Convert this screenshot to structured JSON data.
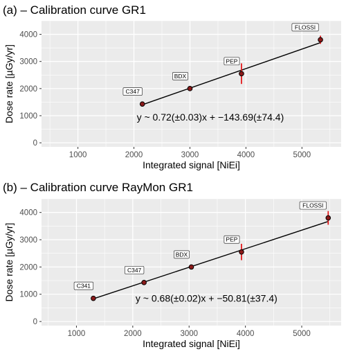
{
  "chart_data": [
    {
      "type": "scatter",
      "title": "(a) – Calibration curve GR1",
      "xlabel": "Integrated signal [NiEi]",
      "ylabel": "Dose rate [µGy/yr]",
      "xlim": [
        350,
        5700
      ],
      "ylim": [
        -150,
        4500
      ],
      "xticks": [
        1000,
        2000,
        3000,
        4000,
        5000
      ],
      "yticks": [
        0,
        1000,
        2000,
        3000,
        4000
      ],
      "xtick_labels": [
        "1000",
        "2000",
        "3000",
        "4000",
        "5000"
      ],
      "ytick_labels": [
        "0",
        "1000",
        "2000",
        "3000",
        "4000"
      ],
      "grid": true,
      "points": [
        {
          "label": "C347",
          "x": 2150,
          "y": 1430,
          "err": 0
        },
        {
          "label": "BDX",
          "x": 3000,
          "y": 2000,
          "err": 0
        },
        {
          "label": "PEP",
          "x": 3920,
          "y": 2550,
          "err": 380
        },
        {
          "label": "FLOSSI",
          "x": 5330,
          "y": 3800,
          "err": 150
        }
      ],
      "fit": {
        "slope": 0.72,
        "intercept": -143.69,
        "x_range": [
          2150,
          5330
        ]
      },
      "equation": "y ~ 0.72(±0.03)x + −143.69(±74.4)",
      "equation_pos": {
        "x": 2050,
        "y": 950
      },
      "colors": {
        "point_fill": "#8b1a1a",
        "error_bar": "#e41a1c",
        "line": "#000000",
        "panel": "#ebebeb",
        "grid": "#ffffff"
      }
    },
    {
      "type": "scatter",
      "title": "(b) – Calibration curve RayMon GR1",
      "xlabel": "Integrated signal [NiEi]",
      "ylabel": "Dose rate [µGy/yr]",
      "xlim": [
        380,
        5700
      ],
      "ylim": [
        -150,
        4500
      ],
      "xticks": [
        1000,
        2000,
        3000,
        4000,
        5000
      ],
      "yticks": [
        0,
        1000,
        2000,
        3000,
        4000
      ],
      "xtick_labels": [
        "1000",
        "2000",
        "3000",
        "4000",
        "5000"
      ],
      "ytick_labels": [
        "0",
        "1000",
        "2000",
        "3000",
        "4000"
      ],
      "grid": true,
      "points": [
        {
          "label": "C341",
          "x": 1300,
          "y": 850,
          "err": 0
        },
        {
          "label": "C347",
          "x": 2200,
          "y": 1430,
          "err": 0
        },
        {
          "label": "BDX",
          "x": 3040,
          "y": 2000,
          "err": 0
        },
        {
          "label": "PEP",
          "x": 3930,
          "y": 2550,
          "err": 300
        },
        {
          "label": "FLOSSI",
          "x": 5470,
          "y": 3800,
          "err": 250
        }
      ],
      "fit": {
        "slope": 0.68,
        "intercept": -50.81,
        "x_range": [
          1300,
          5470
        ]
      },
      "equation": "y ~ 0.68(±0.02)x + −50.81(±37.4)",
      "equation_pos": {
        "x": 2050,
        "y": 850
      },
      "colors": {
        "point_fill": "#8b1a1a",
        "error_bar": "#e41a1c",
        "line": "#000000",
        "panel": "#ebebeb",
        "grid": "#ffffff"
      }
    }
  ]
}
